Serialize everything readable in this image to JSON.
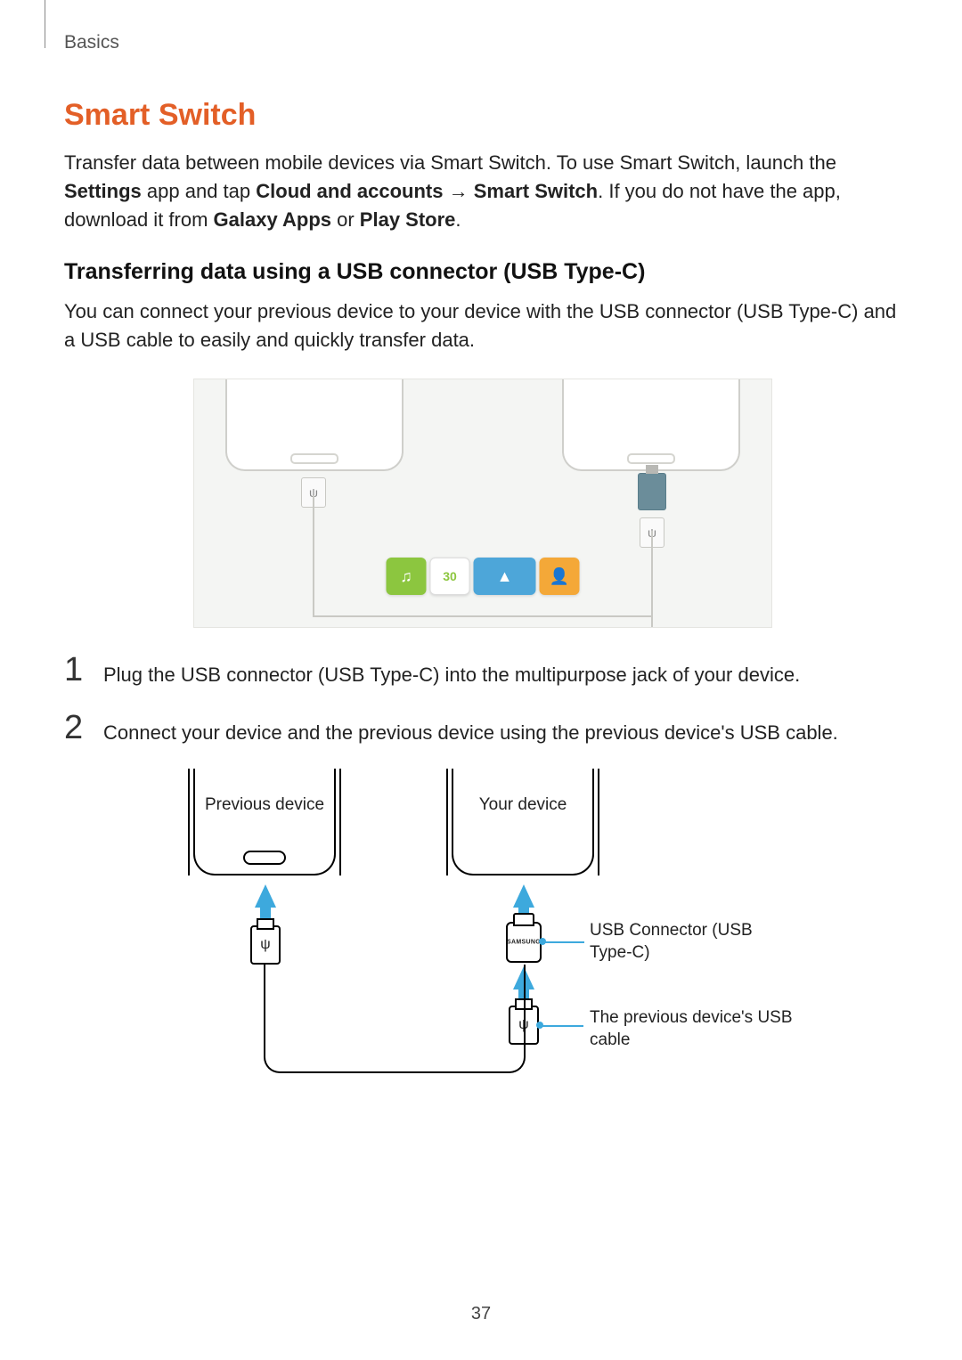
{
  "header": {
    "section": "Basics"
  },
  "title": "Smart Switch",
  "intro": {
    "part1": "Transfer data between mobile devices via Smart Switch. To use Smart Switch, launch the ",
    "bold1": "Settings",
    "part2": " app and tap ",
    "bold2": "Cloud and accounts",
    "arrow": " → ",
    "bold3": "Smart Switch",
    "part3": ". If you do not have the app, download it from ",
    "bold4": "Galaxy Apps",
    "part4": " or ",
    "bold5": "Play Store",
    "part5": "."
  },
  "subheading": "Transferring data using a USB connector (USB Type-C)",
  "subpara": "You can connect your previous device to your device with the USB connector (USB Type-C) and a USB cable to easily and quickly transfer data.",
  "steps": {
    "1": {
      "num": "1",
      "text": "Plug the USB connector (USB Type-C) into the multipurpose jack of your device."
    },
    "2": {
      "num": "2",
      "text": "Connect your device and the previous device using the previous device's USB cable."
    }
  },
  "figure1": {
    "background": "#f4f5f3",
    "adapter_color": "#6b8d9a",
    "media": {
      "cal": "30"
    }
  },
  "figure2": {
    "prev_label": "Previous device",
    "your_label": "Your device",
    "callout_connector": "USB Connector (USB Type-C)",
    "callout_cable": "The previous device's USB cable",
    "samsung": "SAMSUNG",
    "usb_symbol": "ψ",
    "arrow_color": "#3da9dd"
  },
  "page_number": "37"
}
